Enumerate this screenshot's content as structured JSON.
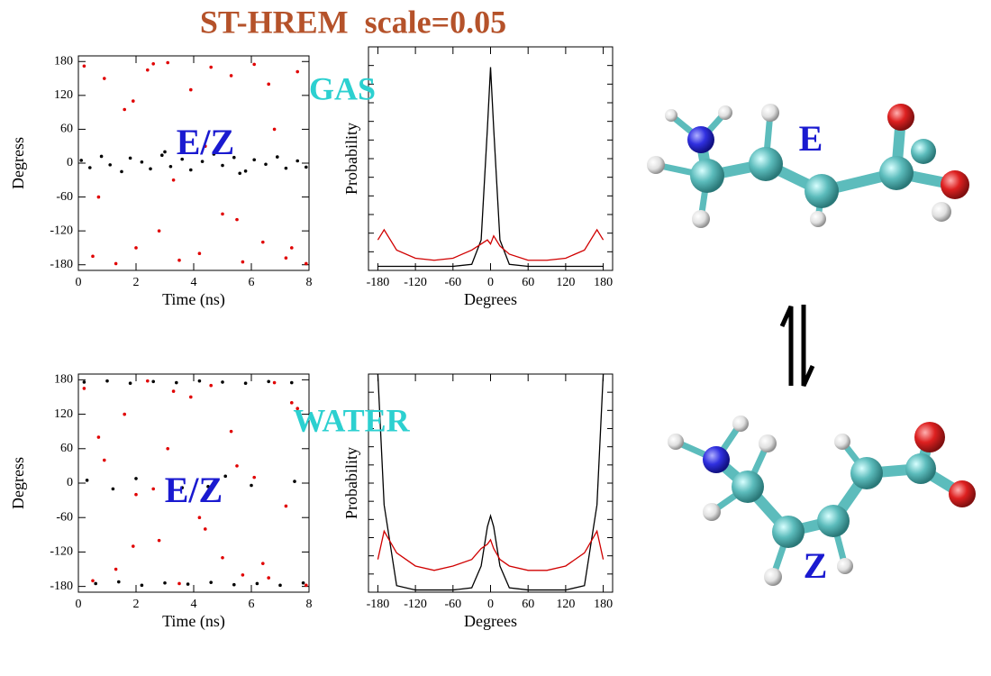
{
  "title": "ST-HREM  scale=0.05",
  "chart_data": [
    {
      "type": "scatter",
      "annotation": "E/Z",
      "xlabel": "Time (ns)",
      "ylabel": "Degress",
      "xlim": [
        0,
        8
      ],
      "xticks": [
        0,
        2,
        4,
        6,
        8
      ],
      "ylim": [
        -190,
        190
      ],
      "yticks": [
        -180,
        -120,
        -60,
        0,
        60,
        120,
        180
      ],
      "series": [
        {
          "color": "#e00000",
          "x": [
            0.2,
            0.5,
            0.9,
            1.3,
            1.6,
            2.0,
            2.4,
            2.8,
            3.1,
            3.5,
            3.9,
            4.2,
            4.6,
            5.0,
            5.3,
            5.7,
            6.1,
            6.4,
            6.8,
            7.2,
            7.6,
            7.9,
            0.7,
            1.9,
            3.3,
            4.4,
            5.5,
            6.6,
            7.4,
            2.6
          ],
          "values": [
            172,
            -165,
            150,
            -178,
            95,
            -150,
            165,
            -120,
            178,
            -172,
            130,
            -160,
            170,
            -90,
            155,
            -175,
            175,
            -140,
            60,
            -168,
            162,
            -178,
            -60,
            110,
            -30,
            30,
            -100,
            140,
            -150,
            176
          ]
        },
        {
          "color": "#000000",
          "x": [
            0.1,
            0.4,
            0.8,
            1.1,
            1.5,
            1.8,
            2.2,
            2.5,
            2.9,
            3.2,
            3.6,
            3.9,
            4.3,
            4.7,
            5.0,
            5.4,
            5.8,
            6.1,
            6.5,
            6.9,
            7.2,
            7.6,
            7.9,
            3.0,
            5.6
          ],
          "values": [
            5,
            -8,
            12,
            -3,
            -15,
            9,
            2,
            -10,
            14,
            -6,
            7,
            -12,
            3,
            16,
            -4,
            10,
            -14,
            6,
            -2,
            11,
            -9,
            4,
            -7,
            20,
            -18
          ]
        }
      ]
    },
    {
      "type": "line",
      "annotation": "GAS",
      "xlabel": "Degrees",
      "ylabel": "Probability",
      "xlim": [
        -195,
        195
      ],
      "xticks": [
        -180,
        -120,
        -60,
        0,
        60,
        120,
        180
      ],
      "ylim": [
        0,
        1.1
      ],
      "x": [
        -180,
        -170,
        -150,
        -120,
        -90,
        -60,
        -30,
        -15,
        -5,
        0,
        5,
        15,
        30,
        60,
        90,
        120,
        150,
        170,
        180
      ],
      "series": [
        {
          "color": "#000000",
          "values": [
            0.02,
            0.02,
            0.02,
            0.02,
            0.02,
            0.02,
            0.03,
            0.15,
            0.7,
            1.0,
            0.7,
            0.15,
            0.03,
            0.02,
            0.02,
            0.02,
            0.02,
            0.02,
            0.02
          ]
        },
        {
          "color": "#d00000",
          "values": [
            0.15,
            0.2,
            0.1,
            0.06,
            0.05,
            0.06,
            0.1,
            0.13,
            0.15,
            0.13,
            0.17,
            0.12,
            0.08,
            0.05,
            0.05,
            0.06,
            0.1,
            0.2,
            0.15
          ]
        }
      ]
    },
    {
      "type": "scatter",
      "annotation": "E/Z",
      "xlabel": "Time (ns)",
      "ylabel": "Degress",
      "xlim": [
        0,
        8
      ],
      "xticks": [
        0,
        2,
        4,
        6,
        8
      ],
      "ylim": [
        -190,
        190
      ],
      "yticks": [
        -180,
        -120,
        -60,
        0,
        60,
        120,
        180
      ],
      "series": [
        {
          "color": "#e00000",
          "x": [
            0.2,
            0.5,
            0.9,
            1.3,
            1.6,
            2.0,
            2.4,
            2.8,
            3.1,
            3.5,
            3.9,
            4.2,
            4.6,
            5.0,
            5.3,
            5.7,
            6.1,
            6.4,
            6.8,
            7.2,
            7.6,
            7.9,
            0.7,
            1.9,
            3.3,
            4.4,
            5.5,
            6.6,
            7.4,
            2.6
          ],
          "values": [
            165,
            -170,
            40,
            -150,
            120,
            -20,
            178,
            -100,
            60,
            -175,
            150,
            -60,
            170,
            -130,
            90,
            -160,
            10,
            -140,
            175,
            -40,
            130,
            -178,
            80,
            -110,
            160,
            -80,
            30,
            -165,
            140,
            -10
          ]
        },
        {
          "color": "#000000",
          "x": [
            0.2,
            0.6,
            1.0,
            1.4,
            1.8,
            2.2,
            2.6,
            3.0,
            3.4,
            3.8,
            4.2,
            4.6,
            5.0,
            5.4,
            5.8,
            6.2,
            6.6,
            7.0,
            7.4,
            7.8,
            0.3,
            1.2,
            2.0,
            4.5,
            5.1,
            6.0,
            7.5,
            3.6
          ],
          "values": [
            176,
            -175,
            178,
            -172,
            174,
            -178,
            177,
            -174,
            175,
            -176,
            178,
            -173,
            176,
            -177,
            174,
            -175,
            177,
            -178,
            175,
            -174,
            5,
            -10,
            8,
            -6,
            12,
            -4,
            3,
            -8
          ]
        }
      ]
    },
    {
      "type": "line",
      "annotation": "WATER",
      "xlabel": "Degrees",
      "ylabel": "Probability",
      "xlim": [
        -195,
        195
      ],
      "xticks": [
        -180,
        -120,
        -60,
        0,
        60,
        120,
        180
      ],
      "ylim": [
        0,
        1.0
      ],
      "x": [
        -180,
        -170,
        -150,
        -120,
        -90,
        -60,
        -30,
        -15,
        -5,
        0,
        5,
        15,
        30,
        60,
        90,
        120,
        150,
        170,
        180
      ],
      "series": [
        {
          "color": "#000000",
          "values": [
            1.0,
            0.4,
            0.03,
            0.01,
            0.01,
            0.01,
            0.02,
            0.12,
            0.3,
            0.35,
            0.3,
            0.12,
            0.02,
            0.01,
            0.01,
            0.01,
            0.03,
            0.4,
            1.0
          ]
        },
        {
          "color": "#d00000",
          "values": [
            0.15,
            0.28,
            0.18,
            0.12,
            0.1,
            0.12,
            0.15,
            0.2,
            0.22,
            0.24,
            0.2,
            0.15,
            0.12,
            0.1,
            0.1,
            0.12,
            0.18,
            0.28,
            0.15
          ]
        }
      ]
    }
  ],
  "molecules": [
    {
      "label": "E"
    },
    {
      "label": "Z"
    }
  ]
}
